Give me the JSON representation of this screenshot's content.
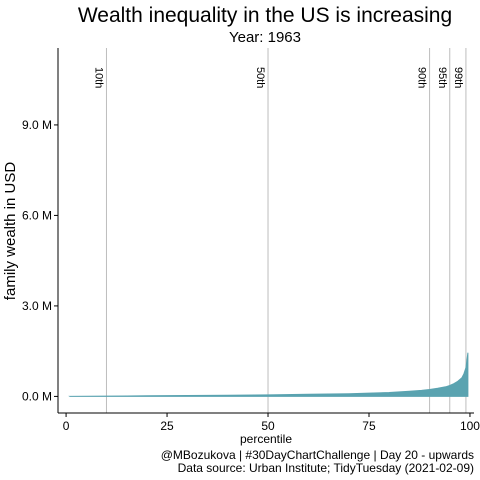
{
  "chart_data": {
    "type": "area",
    "title": "Wealth inequality in the US is increasing",
    "subtitle": "Year: 1963",
    "xlabel": "percentile",
    "ylabel": "family wealth in USD",
    "xlim": [
      -2,
      101
    ],
    "ylim": [
      -0.55,
      11.55
    ],
    "y_unit": "million USD",
    "x_ticks": [
      0,
      25,
      50,
      75,
      100
    ],
    "x_tick_labels": [
      "0",
      "25",
      "50",
      "75",
      "100"
    ],
    "y_ticks": [
      0,
      3,
      6,
      9
    ],
    "y_tick_labels": [
      "0.0 M",
      "3.0 M",
      "6.0 M",
      "9.0 M"
    ],
    "grid": false,
    "fill_color": "#5aa3b0",
    "reference_line_color": "#bdbdbd",
    "reference_lines": [
      {
        "x": 10,
        "label": "10th"
      },
      {
        "x": 50,
        "label": "50th"
      },
      {
        "x": 90,
        "label": "90th"
      },
      {
        "x": 95,
        "label": "95th"
      },
      {
        "x": 99,
        "label": "99th"
      }
    ],
    "x": [
      1,
      10,
      20,
      30,
      40,
      50,
      60,
      70,
      75,
      80,
      85,
      88,
      90,
      92,
      94,
      95,
      96,
      97,
      98,
      98.5,
      99,
      99.5
    ],
    "values": [
      0.0,
      0.01,
      0.02,
      0.03,
      0.04,
      0.05,
      0.07,
      0.09,
      0.11,
      0.13,
      0.17,
      0.2,
      0.23,
      0.27,
      0.32,
      0.36,
      0.42,
      0.5,
      0.62,
      0.75,
      0.95,
      1.45
    ]
  },
  "caption": {
    "line1": "@MBozukova | #30DayChartChallenge | Day 20 - upwards",
    "line2": "Data source: Urban Institute; TidyTuesday (2021-02-09)"
  }
}
